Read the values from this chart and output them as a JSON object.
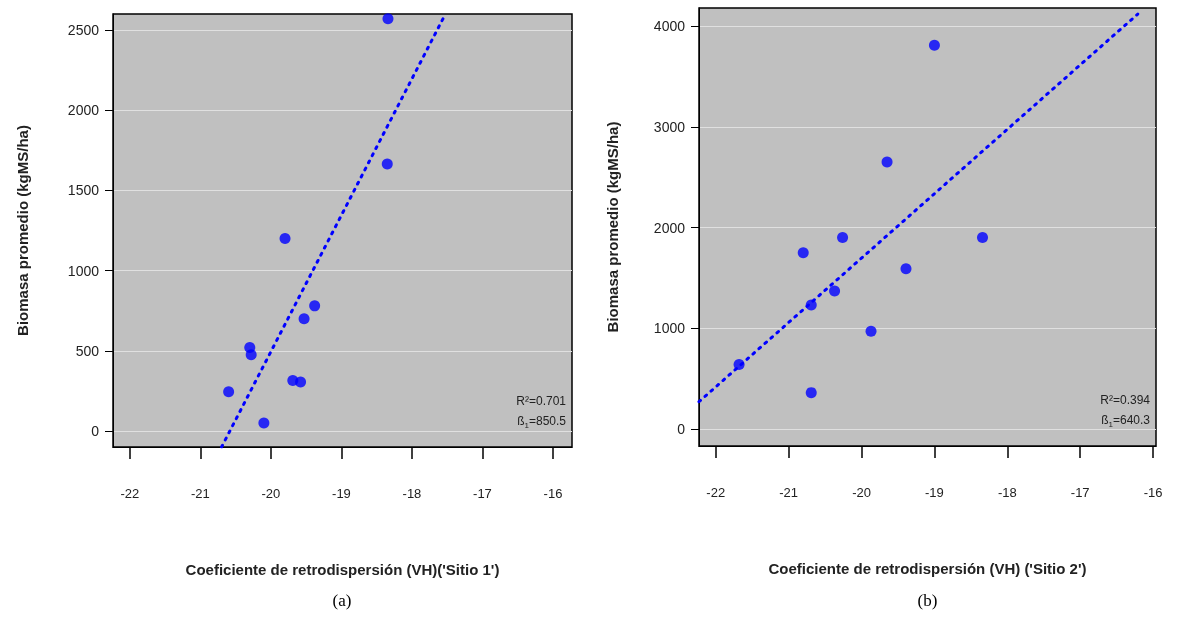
{
  "chart_data": [
    {
      "type": "scatter",
      "title": "(a)",
      "xlabel": "Coeficiente de retrodispersión (VH)('Sitio 1')",
      "ylabel": "Biomasa promedio (kgMS/ha)",
      "annotations": [
        "R²=0.701",
        "ß$_{1}$=850.5"
      ],
      "xlim": [
        -22.24,
        -15.73
      ],
      "xticks": [
        -22,
        -21,
        -20,
        -19,
        -18,
        -17,
        -16
      ],
      "ylim": [
        -100,
        2600
      ],
      "yticks": [
        0,
        500,
        1000,
        1500,
        2000,
        2500
      ],
      "grid": "y",
      "marker": "circle",
      "series": [
        {
          "type": "scatter",
          "color": "#0000ff",
          "x": [
            -18.34,
            -18.35,
            -19.8,
            -19.38,
            -19.53,
            -20.3,
            -20.28,
            -20.6,
            -19.69,
            -19.58,
            -20.1
          ],
          "values": [
            2570,
            1665,
            1200,
            780,
            700,
            520,
            475,
            245,
            315,
            305,
            50
          ]
        },
        {
          "type": "line",
          "color": "#0000ff",
          "line_style": "dotted",
          "marker": "none",
          "x": [
            -20.7,
            -17.53
          ],
          "values": [
            -100,
            2596
          ]
        }
      ]
    },
    {
      "type": "scatter",
      "title": "(b)",
      "xlabel": "Coeficiente de retrodispersión (VH) ('Sitio 2')",
      "ylabel": "Biomasa promedio (kgMS/ha)",
      "annotations": [
        "R²=0.394",
        "ß$_{1}$=640.3"
      ],
      "xlim": [
        -22.23,
        -15.96
      ],
      "xticks": [
        -22,
        -21,
        -20,
        -19,
        -18,
        -17,
        -16
      ],
      "ylim": [
        -170,
        4180
      ],
      "yticks": [
        0,
        1000,
        2000,
        3000,
        4000
      ],
      "grid": "y",
      "marker": "circle",
      "series": [
        {
          "type": "scatter",
          "color": "#0000ff",
          "x": [
            -21.68,
            -20.69,
            -20.8,
            -20.69,
            -20.37,
            -20.26,
            -19.87,
            -19.65,
            -19.39,
            -19.0,
            -18.34
          ],
          "values": [
            640,
            360,
            1750,
            1230,
            1370,
            1900,
            970,
            2650,
            1590,
            3810,
            1900
          ]
        },
        {
          "type": "line",
          "color": "#0000ff",
          "line_style": "dotted",
          "marker": "none",
          "x": [
            -22.23,
            -16.21
          ],
          "values": [
            270,
            4120
          ]
        }
      ]
    }
  ]
}
